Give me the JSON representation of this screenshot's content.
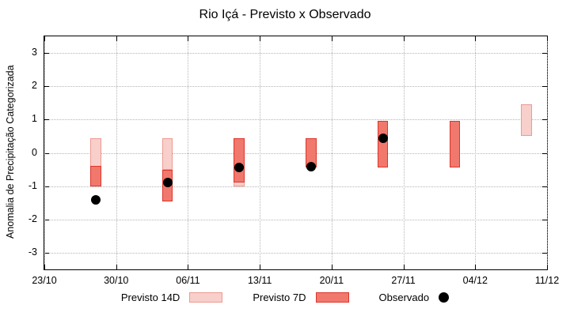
{
  "chart_data": {
    "type": "bar",
    "title": "Rio Içá - Previsto x Observado",
    "ylabel": "Anomalia de Precipitação Categorizada",
    "ylim": [
      -3.5,
      3.5
    ],
    "yticks": [
      -3,
      -2,
      -1,
      0,
      1,
      2,
      3
    ],
    "xlim": [
      0,
      49
    ],
    "x_unit": "days after 23/10",
    "xticks": [
      {
        "pos": 0,
        "label": "23/10"
      },
      {
        "pos": 7,
        "label": "30/10"
      },
      {
        "pos": 14,
        "label": "06/11"
      },
      {
        "pos": 21,
        "label": "13/11"
      },
      {
        "pos": 28,
        "label": "20/11"
      },
      {
        "pos": 35,
        "label": "27/11"
      },
      {
        "pos": 42,
        "label": "04/12"
      },
      {
        "pos": 49,
        "label": "11/12"
      }
    ],
    "bar_width_days": 1.05,
    "grid_color": "#b5b5b5",
    "grid": true,
    "legend_position": "bottom-center",
    "series": [
      {
        "id": "previsto-14d",
        "name": "Previsto 14D",
        "type": "range_bar",
        "fill": "#f8cfca",
        "stroke": "#ec9a92",
        "bars": [
          {
            "x": 5,
            "low": -1.0,
            "high": 0.45
          },
          {
            "x": 12,
            "low": -0.5,
            "high": 0.45
          },
          {
            "x": 19,
            "low": -1.0,
            "high": 0.45
          },
          {
            "x": 26,
            "low": -0.45,
            "high": 0.45
          },
          {
            "x": 33,
            "low": -0.45,
            "high": 0.95
          },
          {
            "x": 40,
            "low": -0.45,
            "high": 0.95
          },
          {
            "x": 47,
            "low": 0.5,
            "high": 1.45
          }
        ]
      },
      {
        "id": "previsto-7d",
        "name": "Previsto 7D",
        "type": "range_bar",
        "fill": "#f1786c",
        "stroke": "#dd352b",
        "bars": [
          {
            "x": 5,
            "low": -1.0,
            "high": -0.4
          },
          {
            "x": 12,
            "low": -1.45,
            "high": -0.5
          },
          {
            "x": 19,
            "low": -0.9,
            "high": 0.45
          },
          {
            "x": 26,
            "low": -0.45,
            "high": 0.45
          },
          {
            "x": 33,
            "low": -0.45,
            "high": 0.95
          },
          {
            "x": 40,
            "low": -0.45,
            "high": 0.95
          }
        ]
      },
      {
        "id": "observado",
        "name": "Observado",
        "type": "point",
        "fill": "#000000",
        "point_radius": 6,
        "points": [
          {
            "x": 5,
            "y": -1.4
          },
          {
            "x": 12,
            "y": -0.9
          },
          {
            "x": 19,
            "y": -0.45
          },
          {
            "x": 26,
            "y": -0.42
          },
          {
            "x": 33,
            "y": 0.45
          }
        ]
      }
    ]
  }
}
